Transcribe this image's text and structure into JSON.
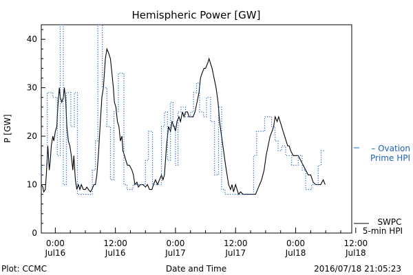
{
  "title": "Hemispheric Power [GW]",
  "ylabel": "P [GW]",
  "xlabel": "Date and Time",
  "footer": {
    "left": "Plot: CCMC",
    "right": "2016/07/18 21:05:23"
  },
  "legend": {
    "ovation": {
      "line1": "– Ovation",
      "line2": "Prime HPI",
      "color": "#1f5fbf"
    },
    "swpc": {
      "line1": "SWPC",
      "line2": "5-min HPI",
      "color": "#000000"
    }
  },
  "chart_data": {
    "type": "line",
    "title": "Hemispheric Power [GW]",
    "xlabel": "Date and Time",
    "ylabel": "P [GW]",
    "x_unit": "hours since 2016-07-16 00:00 UT",
    "xlim": [
      -2.8,
      59.2
    ],
    "ylim": [
      0,
      43
    ],
    "yticks": [
      0,
      10,
      20,
      30,
      40
    ],
    "xticks": [
      {
        "x": 0,
        "time": "0:00",
        "date": "Jul16"
      },
      {
        "x": 12,
        "time": "12:00",
        "date": "Jul16"
      },
      {
        "x": 24,
        "time": "0:00",
        "date": "Jul17"
      },
      {
        "x": 36,
        "time": "12:00",
        "date": "Jul17"
      },
      {
        "x": 48,
        "time": "0:00",
        "date": "Jul18"
      },
      {
        "x": 60,
        "time": "12:00",
        "date": "Jul18"
      }
    ],
    "grid": false,
    "legend_position": "right, outside plot",
    "series": [
      {
        "name": "SWPC 5-min HPI",
        "color": "#000000",
        "style": "solid",
        "points": [
          [
            -2.8,
            10
          ],
          [
            -2.5,
            9.5
          ],
          [
            -2.3,
            8.5
          ],
          [
            -2,
            9
          ],
          [
            -1.8,
            12
          ],
          [
            -1.5,
            18
          ],
          [
            -1.2,
            13
          ],
          [
            -1,
            15
          ],
          [
            -0.8,
            18
          ],
          [
            -0.5,
            20
          ],
          [
            -0.3,
            19
          ],
          [
            0,
            21
          ],
          [
            0.3,
            22
          ],
          [
            0.5,
            26
          ],
          [
            0.8,
            30
          ],
          [
            1,
            28
          ],
          [
            1.3,
            27
          ],
          [
            1.6,
            28
          ],
          [
            1.8,
            30
          ],
          [
            2.1,
            27
          ],
          [
            2.3,
            22
          ],
          [
            2.6,
            19
          ],
          [
            2.9,
            18
          ],
          [
            3.2,
            16
          ],
          [
            3.5,
            13
          ],
          [
            3.7,
            16
          ],
          [
            4.0,
            11
          ],
          [
            4.3,
            9
          ],
          [
            4.6,
            10
          ],
          [
            4.9,
            9
          ],
          [
            5.2,
            10
          ],
          [
            5.6,
            9
          ],
          [
            6.0,
            9
          ],
          [
            6.3,
            9.5
          ],
          [
            6.6,
            9
          ],
          [
            7,
            8.5
          ],
          [
            7.3,
            9
          ],
          [
            7.7,
            10
          ],
          [
            8,
            10
          ],
          [
            8.3,
            12
          ],
          [
            8.6,
            16
          ],
          [
            9,
            23
          ],
          [
            9.3,
            28
          ],
          [
            9.6,
            30
          ],
          [
            10,
            36
          ],
          [
            10.3,
            38
          ],
          [
            10.7,
            37
          ],
          [
            11,
            36
          ],
          [
            11.3,
            33
          ],
          [
            11.6,
            30
          ],
          [
            11.8,
            27
          ],
          [
            12.1,
            26
          ],
          [
            12.4,
            23
          ],
          [
            12.7,
            22
          ],
          [
            13,
            19
          ],
          [
            13.3,
            20
          ],
          [
            13.5,
            17
          ],
          [
            13.8,
            16
          ],
          [
            14.1,
            15
          ],
          [
            14.4,
            14
          ],
          [
            14.8,
            14
          ],
          [
            15.3,
            13
          ],
          [
            15.6,
            12
          ],
          [
            15.9,
            10
          ],
          [
            16.3,
            10.5
          ],
          [
            16.6,
            9.5
          ],
          [
            17,
            10
          ],
          [
            17.5,
            10
          ],
          [
            18,
            9.5
          ],
          [
            18.4,
            10
          ],
          [
            18.8,
            9
          ],
          [
            19.3,
            9
          ],
          [
            19.6,
            10
          ],
          [
            20,
            11
          ],
          [
            20.4,
            10
          ],
          [
            20.8,
            11
          ],
          [
            21.2,
            12
          ],
          [
            21.5,
            11
          ],
          [
            21.8,
            12
          ],
          [
            22.2,
            18
          ],
          [
            22.6,
            22
          ],
          [
            23,
            21
          ],
          [
            23.3,
            23
          ],
          [
            23.7,
            22
          ],
          [
            24,
            21
          ],
          [
            24.3,
            23
          ],
          [
            24.7,
            24
          ],
          [
            25,
            23
          ],
          [
            25.4,
            25
          ],
          [
            25.7,
            24
          ],
          [
            26,
            25
          ],
          [
            26.4,
            25
          ],
          [
            26.7,
            24
          ],
          [
            27.1,
            24
          ],
          [
            27.5,
            24
          ],
          [
            27.9,
            25
          ],
          [
            28.3,
            27
          ],
          [
            28.7,
            29
          ],
          [
            29,
            32
          ],
          [
            29.3,
            33
          ],
          [
            29.7,
            34
          ],
          [
            30,
            34
          ],
          [
            30.4,
            35
          ],
          [
            30.7,
            36
          ],
          [
            31,
            35
          ],
          [
            31.3,
            34
          ],
          [
            31.7,
            32
          ],
          [
            32.1,
            30
          ],
          [
            32.5,
            27
          ],
          [
            32.8,
            23
          ],
          [
            33.2,
            20
          ],
          [
            33.6,
            17
          ],
          [
            34,
            14
          ],
          [
            34.3,
            12
          ],
          [
            34.6,
            10
          ],
          [
            35,
            9
          ],
          [
            35.3,
            10
          ],
          [
            35.6,
            8.5
          ],
          [
            36,
            10
          ],
          [
            36.3,
            9
          ],
          [
            36.6,
            8
          ],
          [
            37,
            8.5
          ],
          [
            37.5,
            8
          ],
          [
            38,
            8
          ],
          [
            39,
            8
          ],
          [
            40,
            8
          ],
          [
            40.4,
            9
          ],
          [
            40.8,
            10
          ],
          [
            41.2,
            11
          ],
          [
            41.7,
            13
          ],
          [
            42.1,
            16
          ],
          [
            42.5,
            18
          ],
          [
            42.9,
            20
          ],
          [
            43.3,
            21
          ],
          [
            43.6,
            22
          ],
          [
            43.9,
            24
          ],
          [
            44.3,
            23
          ],
          [
            44.6,
            24
          ],
          [
            44.9,
            23
          ],
          [
            45.2,
            22
          ],
          [
            45.5,
            21
          ],
          [
            45.8,
            20
          ],
          [
            46.1,
            19
          ],
          [
            46.4,
            18
          ],
          [
            46.7,
            18
          ],
          [
            47.0,
            17
          ],
          [
            47.5,
            16
          ],
          [
            48,
            16
          ],
          [
            48.5,
            16
          ],
          [
            49,
            15
          ],
          [
            49.5,
            14
          ],
          [
            50,
            13
          ],
          [
            50.5,
            12
          ],
          [
            51,
            12
          ],
          [
            51.5,
            10.5
          ],
          [
            52,
            10
          ],
          [
            52.5,
            10
          ],
          [
            53,
            10
          ],
          [
            53.5,
            11
          ],
          [
            53.9,
            10
          ]
        ]
      },
      {
        "name": "Ovation Prime HPI",
        "color": "#1f5fbf",
        "style": "dotted",
        "points": [
          [
            -2.8,
            12
          ],
          [
            -2.7,
            14
          ],
          [
            -1.6,
            14
          ],
          [
            -1.6,
            29
          ],
          [
            -0.5,
            29
          ],
          [
            -0.5,
            28
          ],
          [
            0.4,
            28
          ],
          [
            0.4,
            16
          ],
          [
            1.0,
            16
          ],
          [
            1.0,
            43
          ],
          [
            1.6,
            43
          ],
          [
            1.6,
            10
          ],
          [
            2.2,
            10
          ],
          [
            2.2,
            29
          ],
          [
            3.1,
            29
          ],
          [
            3.1,
            22
          ],
          [
            3.8,
            22
          ],
          [
            3.8,
            29
          ],
          [
            4.4,
            29
          ],
          [
            4.4,
            8
          ],
          [
            6.0,
            8
          ],
          [
            6.0,
            8
          ],
          [
            7.4,
            8
          ],
          [
            7.4,
            13
          ],
          [
            8.0,
            13
          ],
          [
            8.0,
            19
          ],
          [
            8.5,
            19
          ],
          [
            8.5,
            43
          ],
          [
            9.4,
            43
          ],
          [
            9.4,
            30
          ],
          [
            10.3,
            30
          ],
          [
            10.3,
            22
          ],
          [
            11.0,
            22
          ],
          [
            11.0,
            11
          ],
          [
            11.7,
            11
          ],
          [
            11.7,
            25
          ],
          [
            12.6,
            25
          ],
          [
            12.6,
            33
          ],
          [
            13.7,
            33
          ],
          [
            13.7,
            10
          ],
          [
            14.3,
            10
          ],
          [
            14.3,
            9
          ],
          [
            15.5,
            9
          ],
          [
            15.5,
            10
          ],
          [
            18.0,
            10
          ],
          [
            18.0,
            15
          ],
          [
            18.6,
            15
          ],
          [
            18.6,
            21
          ],
          [
            19.4,
            21
          ],
          [
            19.4,
            10
          ],
          [
            20.0,
            10
          ],
          [
            20.0,
            10
          ],
          [
            21.2,
            10
          ],
          [
            21.2,
            22
          ],
          [
            21.8,
            22
          ],
          [
            21.8,
            25
          ],
          [
            22.4,
            25
          ],
          [
            22.4,
            15
          ],
          [
            23.0,
            15
          ],
          [
            23.0,
            27
          ],
          [
            23.5,
            27
          ],
          [
            23.5,
            22
          ],
          [
            24.0,
            22
          ],
          [
            24.0,
            14
          ],
          [
            24.5,
            14
          ],
          [
            24.5,
            25
          ],
          [
            25.1,
            25
          ],
          [
            25.1,
            26
          ],
          [
            26.0,
            26
          ],
          [
            26.0,
            24
          ],
          [
            27.0,
            24
          ],
          [
            27.0,
            25
          ],
          [
            27.6,
            25
          ],
          [
            27.6,
            29
          ],
          [
            28.2,
            29
          ],
          [
            28.2,
            31
          ],
          [
            28.8,
            31
          ],
          [
            28.8,
            25
          ],
          [
            29.6,
            25
          ],
          [
            29.6,
            24
          ],
          [
            30.2,
            24
          ],
          [
            30.2,
            28
          ],
          [
            31.0,
            28
          ],
          [
            31.0,
            23
          ],
          [
            31.8,
            23
          ],
          [
            31.8,
            12
          ],
          [
            32.6,
            12
          ],
          [
            32.6,
            26
          ],
          [
            33.2,
            26
          ],
          [
            33.2,
            9
          ],
          [
            33.9,
            9
          ],
          [
            33.9,
            8
          ],
          [
            36.0,
            8
          ],
          [
            36.0,
            8
          ],
          [
            39.6,
            8
          ],
          [
            39.6,
            16
          ],
          [
            40.2,
            16
          ],
          [
            40.2,
            21
          ],
          [
            41.8,
            21
          ],
          [
            41.8,
            24
          ],
          [
            43.2,
            24
          ],
          [
            43.2,
            22
          ],
          [
            43.9,
            22
          ],
          [
            43.9,
            19
          ],
          [
            44.5,
            19
          ],
          [
            44.5,
            17
          ],
          [
            45.2,
            17
          ],
          [
            45.2,
            18
          ],
          [
            46.0,
            18
          ],
          [
            46.0,
            16
          ],
          [
            47.2,
            16
          ],
          [
            47.2,
            14
          ],
          [
            48.5,
            14
          ],
          [
            48.5,
            16
          ],
          [
            49.3,
            16
          ],
          [
            49.3,
            13
          ],
          [
            50.0,
            13
          ],
          [
            50.0,
            9
          ],
          [
            51.2,
            9
          ],
          [
            51.2,
            10
          ],
          [
            52.5,
            10
          ],
          [
            52.5,
            14
          ],
          [
            53.1,
            14
          ],
          [
            53.1,
            17
          ],
          [
            53.9,
            17
          ]
        ]
      }
    ]
  }
}
